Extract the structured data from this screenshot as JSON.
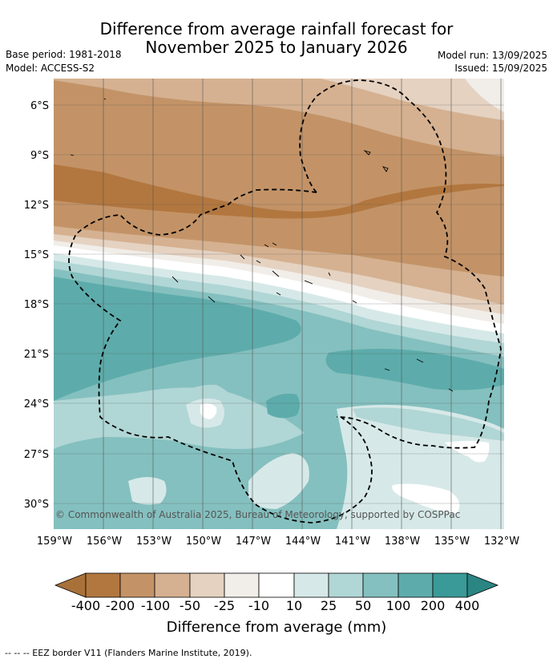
{
  "title": {
    "line1": "Difference from average rainfall forecast for",
    "line2": "November 2025 to January 2026"
  },
  "meta": {
    "base_period": "Base period: 1981-2018",
    "model": "Model: ACCESS-S2",
    "model_run": "Model run: 13/09/2025",
    "issued": "Issued: 15/09/2025"
  },
  "map": {
    "lat_labels": [
      "6°S",
      "9°S",
      "12°S",
      "15°S",
      "18°S",
      "21°S",
      "24°S",
      "27°S",
      "30°S"
    ],
    "lon_labels": [
      "159°W",
      "156°W",
      "153°W",
      "150°W",
      "147°W",
      "144°W",
      "141°W",
      "138°W",
      "135°W",
      "132°W"
    ],
    "copyright": "© Commonwealth of Australia 2025, Bureau of Meteorology, supported by COSPPac"
  },
  "colorbar": {
    "colors": [
      "#a9713a",
      "#b2773f",
      "#c39367",
      "#d5b191",
      "#e5d2c1",
      "#f1ede8",
      "#ffffff",
      "#d6e9e8",
      "#b0d6d5",
      "#84c0bf",
      "#5dacab",
      "#3a9a98",
      "#2b8583"
    ],
    "ticks": [
      "-400",
      "-200",
      "-100",
      "-50",
      "-25",
      "-10",
      "10",
      "25",
      "50",
      "100",
      "200",
      "400"
    ],
    "label": "Difference from average (mm)"
  },
  "footer": {
    "legend_line": "-- -- -- EEZ border V11 (Flanders Marine Institute, 2019)."
  }
}
